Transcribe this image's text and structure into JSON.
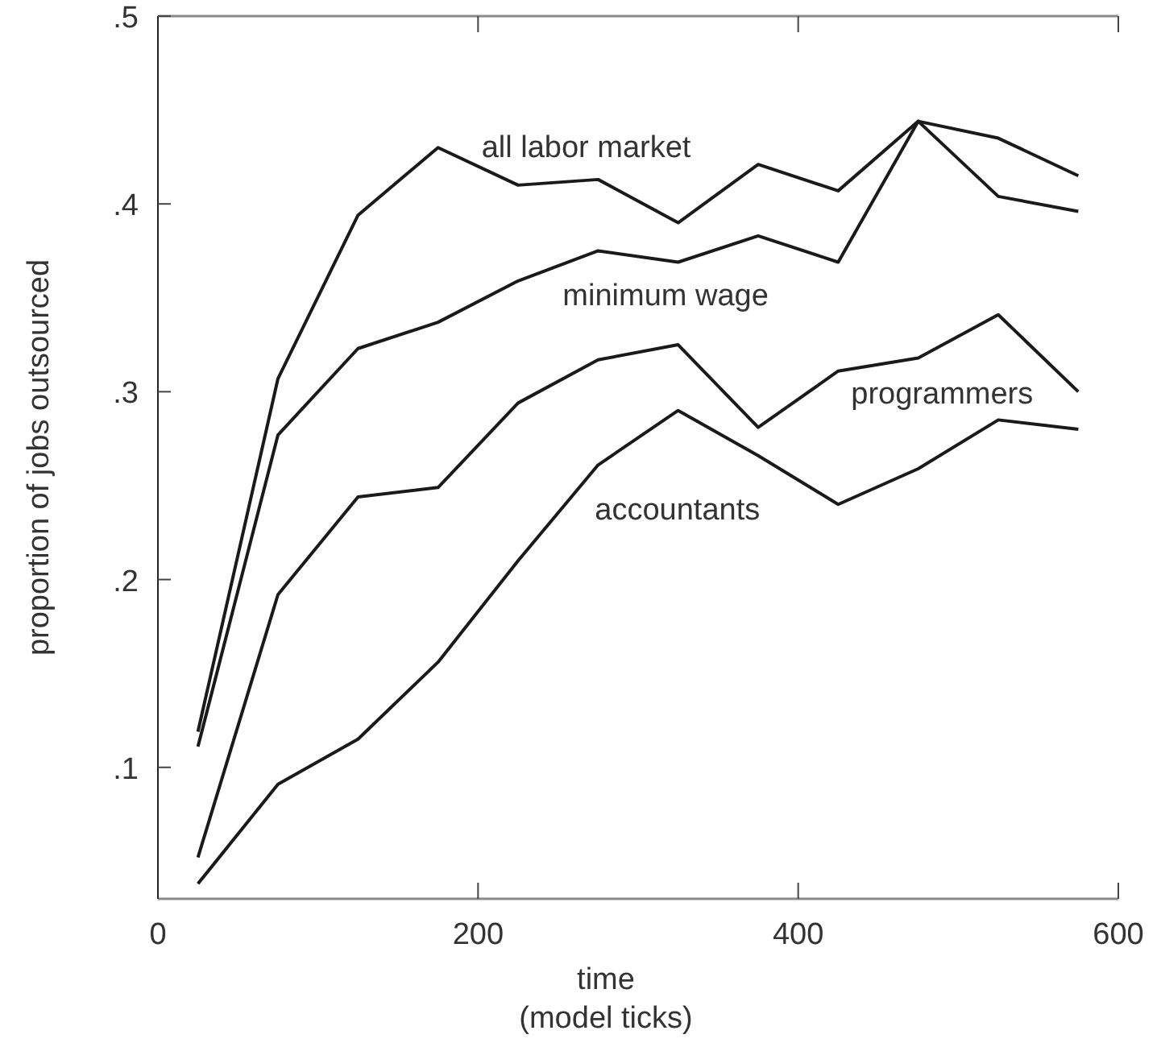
{
  "chart_data": {
    "type": "line",
    "xlabel": "time\n(model ticks)",
    "ylabel": "proportion of jobs outsourced",
    "x": [
      25,
      75,
      125,
      175,
      225,
      275,
      325,
      375,
      425,
      475,
      525,
      575
    ],
    "series": [
      {
        "name": "all labor market",
        "color": "#1a1a1a",
        "values": [
          0.119,
          0.307,
          0.394,
          0.43,
          0.41,
          0.413,
          0.39,
          0.421,
          0.407,
          0.444,
          0.435,
          0.415
        ]
      },
      {
        "name": "minimum wage",
        "color": "#1a1a1a",
        "values": [
          0.111,
          0.277,
          0.323,
          0.337,
          0.359,
          0.375,
          0.369,
          0.383,
          0.369,
          0.444,
          0.404,
          0.396
        ]
      },
      {
        "name": "programmers",
        "color": "#1a1a1a",
        "values": [
          0.052,
          0.192,
          0.244,
          0.249,
          0.294,
          0.317,
          0.325,
          0.281,
          0.311,
          0.318,
          0.341,
          0.3
        ]
      },
      {
        "name": "accountants",
        "color": "#1a1a1a",
        "values": [
          0.038,
          0.091,
          0.115,
          0.156,
          0.21,
          0.261,
          0.29,
          0.266,
          0.24,
          0.259,
          0.285,
          0.28
        ]
      }
    ],
    "xlim": [
      0,
      600
    ],
    "ylim": [
      0.03,
      0.5
    ],
    "xticks": [
      0,
      200,
      400,
      600
    ],
    "yticks": [
      {
        "value": 0.1,
        "label": ".1"
      },
      {
        "value": 0.2,
        "label": ".2"
      },
      {
        "value": 0.3,
        "label": ".3"
      },
      {
        "value": 0.4,
        "label": ".4"
      },
      {
        "value": 0.5,
        "label": ".5"
      }
    ],
    "grid": false,
    "marker": "none",
    "line_style": "solid"
  }
}
